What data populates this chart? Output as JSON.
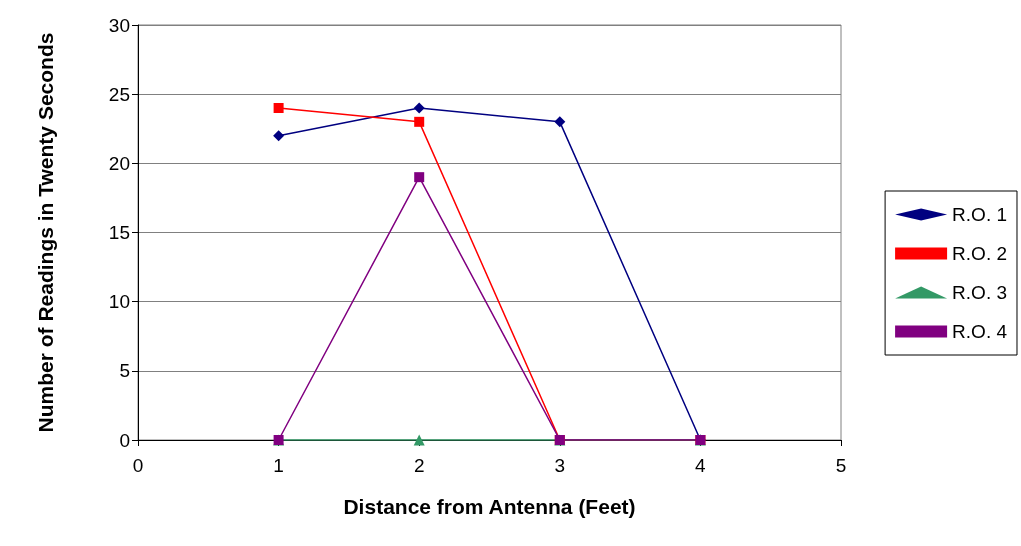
{
  "chart_data": {
    "type": "line",
    "xlabel": "Distance from Antenna (Feet)",
    "ylabel": "Number of Readings in Twenty Seconds",
    "x": [
      1,
      2,
      3,
      4
    ],
    "xlim": [
      0,
      5
    ],
    "xticks": [
      0,
      1,
      2,
      3,
      4,
      5
    ],
    "ylim": [
      0,
      30
    ],
    "yticks": [
      0,
      5,
      10,
      15,
      20,
      25,
      30
    ],
    "grid": "y",
    "legend": "right",
    "series": [
      {
        "name": "R.O. 1",
        "color": "#000080",
        "marker": "diamond",
        "values": [
          22,
          24,
          23,
          0
        ]
      },
      {
        "name": "R.O. 2",
        "color": "#ff0000",
        "marker": "square",
        "values": [
          24,
          23,
          0,
          0
        ]
      },
      {
        "name": "R.O. 3",
        "color": "#339966",
        "marker": "triangle",
        "values": [
          0,
          0,
          0,
          0
        ]
      },
      {
        "name": "R.O. 4",
        "color": "#800080",
        "marker": "square",
        "values": [
          0,
          19,
          0,
          0
        ]
      }
    ]
  }
}
